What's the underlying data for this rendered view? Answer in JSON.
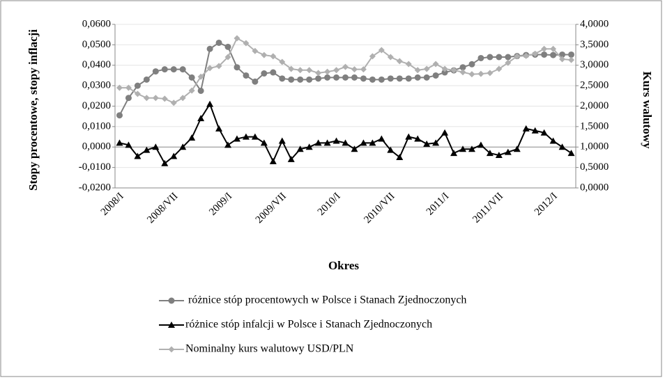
{
  "chart_data": {
    "type": "line",
    "x_label": "Okres",
    "y_label": "Stopy procentowe, stopy inflacji",
    "y2_label": "Kurs walutowy",
    "categories": [
      "2008/I",
      null,
      null,
      null,
      null,
      null,
      "2008/VII",
      null,
      null,
      null,
      null,
      null,
      "2009/I",
      null,
      null,
      null,
      null,
      null,
      "2009/VII",
      null,
      null,
      null,
      null,
      null,
      "2010/I",
      null,
      null,
      null,
      null,
      null,
      "2010/VII",
      null,
      null,
      null,
      null,
      null,
      "2011/I",
      null,
      null,
      null,
      null,
      null,
      "2011/VII",
      null,
      null,
      null,
      null,
      null,
      "2012/I",
      null,
      null
    ],
    "ylim": [
      -0.02,
      0.06
    ],
    "yticks": [
      {
        "value": -0.02,
        "label": "-0,0200"
      },
      {
        "value": -0.01,
        "label": "-0,0100"
      },
      {
        "value": 0,
        "label": "0,0000"
      },
      {
        "value": 0.01,
        "label": "0,0100"
      },
      {
        "value": 0.02,
        "label": "0,0200"
      },
      {
        "value": 0.03,
        "label": "0,0300"
      },
      {
        "value": 0.04,
        "label": "0,0400"
      },
      {
        "value": 0.05,
        "label": "0,0500"
      },
      {
        "value": 0.06,
        "label": "0,0600"
      }
    ],
    "y2lim": [
      0,
      4
    ],
    "y2ticks": [
      {
        "value": 0,
        "label": "0,0000"
      },
      {
        "value": 0.5,
        "label": "0,5000"
      },
      {
        "value": 1,
        "label": "1,0000"
      },
      {
        "value": 1.5,
        "label": "1,5000"
      },
      {
        "value": 2,
        "label": "2,0000"
      },
      {
        "value": 2.5,
        "label": "2,5000"
      },
      {
        "value": 3,
        "label": "3,0000"
      },
      {
        "value": 3.5,
        "label": "3,5000"
      },
      {
        "value": 4,
        "label": "4,0000"
      }
    ],
    "grid": true,
    "legend": "bottom",
    "series": [
      {
        "name": " różnice stóp procentowych w Polsce i Stanach Zjednoczonych",
        "color": "#7f7f7f",
        "marker": "circle",
        "values": [
          0.0155,
          0.024,
          0.03,
          0.033,
          0.037,
          0.038,
          0.038,
          0.038,
          0.034,
          0.0275,
          0.048,
          0.051,
          0.049,
          0.039,
          0.035,
          0.032,
          0.036,
          0.0365,
          0.0335,
          0.033,
          0.033,
          0.033,
          0.0335,
          0.034,
          0.034,
          0.034,
          0.034,
          0.0335,
          0.033,
          0.033,
          0.0335,
          0.0335,
          0.0335,
          0.034,
          0.034,
          0.035,
          0.0365,
          0.0375,
          0.039,
          0.0405,
          0.0435,
          0.044,
          0.044,
          0.044,
          0.0445,
          0.045,
          0.0452,
          0.0452,
          0.045,
          0.0452,
          0.0452
        ]
      },
      {
        "name": "różnice stóp infalcji w Polsce i Stanach Zjednoczonych",
        "color": "#000000",
        "marker": "triangle",
        "values": [
          0.002,
          0.001,
          -0.0045,
          -0.0015,
          0,
          -0.008,
          -0.0045,
          0,
          0.0045,
          0.014,
          0.021,
          0.009,
          0.001,
          0.004,
          0.005,
          0.005,
          0.002,
          -0.007,
          0.003,
          -0.006,
          -0.001,
          0,
          0.002,
          0.002,
          0.003,
          0.002,
          -0.001,
          0.002,
          0.002,
          0.004,
          -0.0015,
          -0.005,
          0.005,
          0.004,
          0.0015,
          0.002,
          0.007,
          -0.003,
          -0.001,
          -0.001,
          0.001,
          -0.003,
          -0.004,
          -0.0025,
          -0.001,
          0.009,
          0.008,
          0.007,
          0.003,
          0,
          -0.003
        ]
      },
      {
        "name": "Nominalny kurs walutowy USD/PLN",
        "color": "#b0b0b0",
        "marker": "diamond",
        "axis": "y2",
        "values": [
          2.45,
          2.45,
          2.3,
          2.2,
          2.2,
          2.18,
          2.08,
          2.2,
          2.38,
          2.72,
          2.93,
          2.98,
          3.2,
          3.66,
          3.54,
          3.35,
          3.25,
          3.22,
          3.08,
          2.91,
          2.88,
          2.88,
          2.81,
          2.84,
          2.88,
          2.96,
          2.9,
          2.9,
          3.22,
          3.37,
          3.2,
          3.1,
          3.03,
          2.88,
          2.91,
          3.03,
          2.91,
          2.88,
          2.83,
          2.78,
          2.79,
          2.81,
          2.91,
          3.06,
          3.22,
          3.23,
          3.28,
          3.4,
          3.4,
          3.15,
          3.13
        ]
      }
    ]
  }
}
